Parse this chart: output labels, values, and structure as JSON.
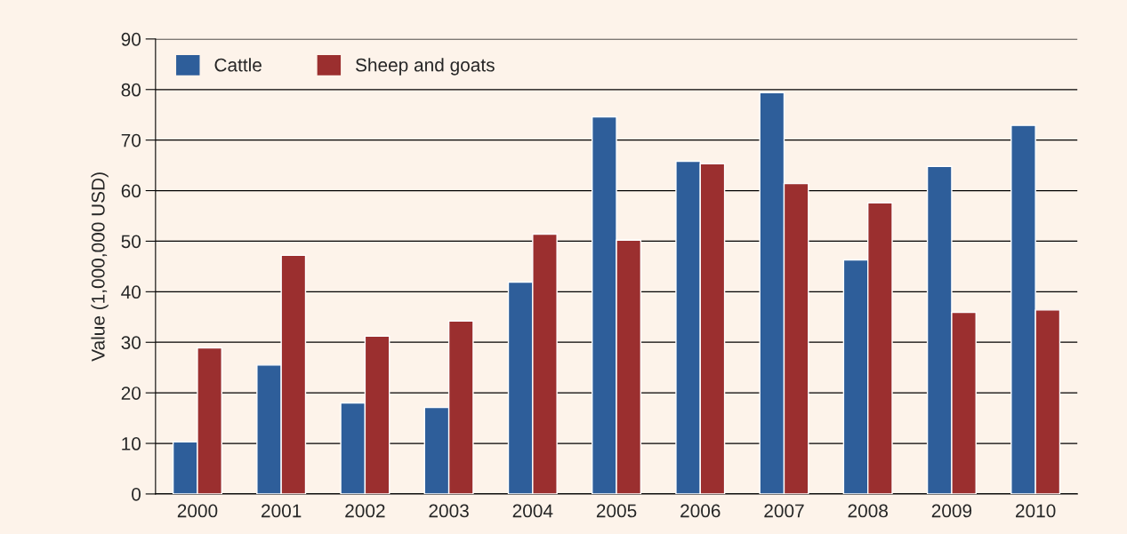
{
  "chart_data": {
    "type": "bar",
    "ylabel": "Value (1,000,000 USD)",
    "categories": [
      "2000",
      "2001",
      "2002",
      "2003",
      "2004",
      "2005",
      "2006",
      "2007",
      "2008",
      "2009",
      "2010"
    ],
    "series": [
      {
        "name": "Cattle",
        "color": "#2e5e9a",
        "values": [
          10.3,
          25.5,
          18.0,
          17.1,
          41.9,
          74.6,
          65.8,
          79.4,
          46.3,
          64.8,
          72.9
        ]
      },
      {
        "name": "Sheep and goats",
        "color": "#9b2f2f",
        "values": [
          28.9,
          47.2,
          31.2,
          34.2,
          51.4,
          50.2,
          65.3,
          61.4,
          57.6,
          35.9,
          36.4
        ]
      }
    ],
    "ylim": [
      0,
      90
    ],
    "yticks": [
      0,
      10,
      20,
      30,
      40,
      50,
      60,
      70,
      80,
      90
    ],
    "grid": "y",
    "legend": "top left"
  }
}
